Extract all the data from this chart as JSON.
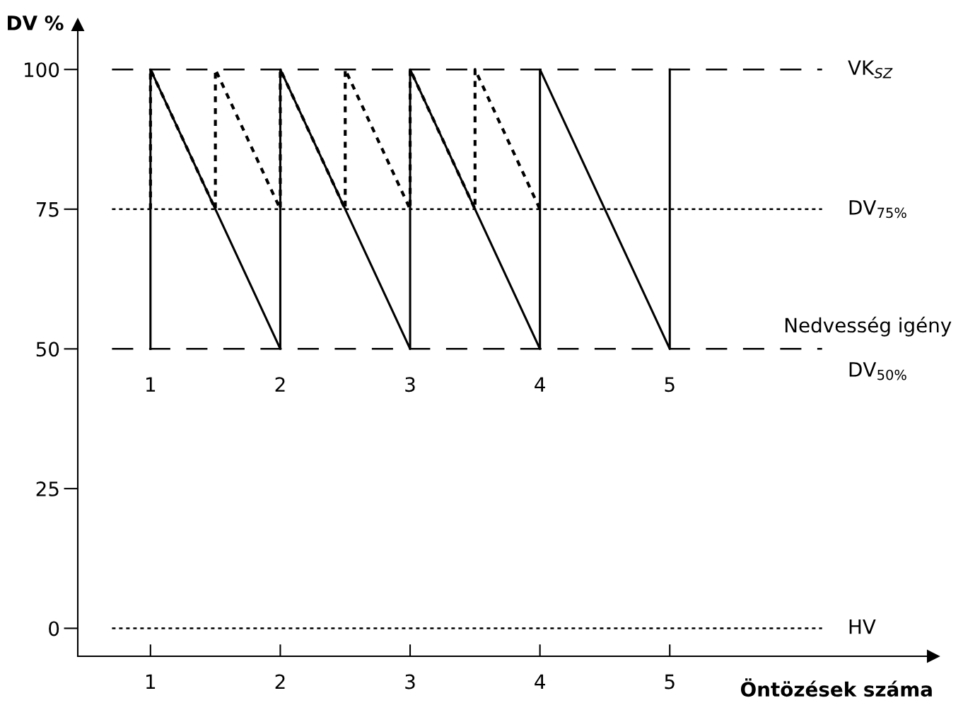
{
  "chart_data": {
    "type": "line",
    "ylabel": "DV %",
    "xlabel": "Öntözések száma",
    "xlim": [
      0.44,
      7.03
    ],
    "ylim": [
      -5,
      108
    ],
    "xticks": [
      1,
      2,
      3,
      4,
      5
    ],
    "yticks": [
      0,
      25,
      50,
      75,
      100
    ],
    "grid": false,
    "legend": false,
    "series": [
      {
        "color": "#000000",
        "line_style": "solid",
        "x": [
          1,
          1,
          2,
          2,
          3,
          3,
          4,
          4,
          5,
          5
        ],
        "values": [
          50,
          100,
          50,
          100,
          50,
          100,
          50,
          100,
          50,
          100
        ]
      },
      {
        "color": "#000000",
        "line_style": "dotted",
        "x": [
          1,
          1,
          1.5,
          1.5,
          2,
          2,
          2.5,
          2.5,
          3,
          3,
          3.5,
          3.5,
          4
        ],
        "values": [
          75,
          100,
          75,
          100,
          75,
          100,
          75,
          100,
          75,
          100,
          75,
          100,
          75
        ]
      }
    ],
    "ref_lines": [
      {
        "axis": "y",
        "value": 100,
        "label": "VK$_{SZ}$",
        "line_style": "dashed",
        "color": "#000000"
      },
      {
        "axis": "y",
        "value": 75,
        "label": "DV$_{75%}$",
        "line_style": "dotted",
        "color": "#000000"
      },
      {
        "axis": "y",
        "value": 50,
        "label": "Nedvesség igény",
        "line_style": "dashed",
        "color": "#000000"
      },
      {
        "axis": "y",
        "value": 0,
        "label": "HV",
        "line_style": "dotted",
        "color": "#000000"
      }
    ],
    "annotations": [
      {
        "text": "1",
        "x": 1,
        "y": 50
      },
      {
        "text": "2",
        "x": 2,
        "y": 50
      },
      {
        "text": "3",
        "x": 3,
        "y": 50
      },
      {
        "text": "4",
        "x": 4,
        "y": 50
      },
      {
        "text": "5",
        "x": 5,
        "y": 50
      },
      "DV$_{50%}$"
    ]
  }
}
